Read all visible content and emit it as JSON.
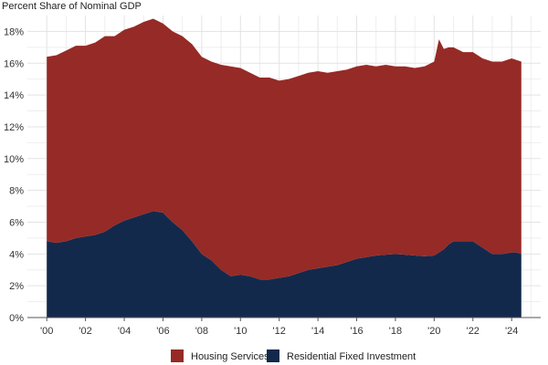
{
  "chart_data": {
    "type": "area",
    "stacked": true,
    "ylabel": "Percent Share of Nominal GDP",
    "ylim": [
      0,
      19
    ],
    "yticks": [
      0,
      2,
      4,
      6,
      8,
      10,
      12,
      14,
      16,
      18
    ],
    "ytick_labels": [
      "0%",
      "2%",
      "4%",
      "6%",
      "8%",
      "10%",
      "12%",
      "14%",
      "16%",
      "18%"
    ],
    "xlim": [
      1999.0,
      2025.5
    ],
    "xticks": [
      2000,
      2002,
      2004,
      2006,
      2008,
      2010,
      2012,
      2014,
      2016,
      2018,
      2020,
      2022,
      2024
    ],
    "xtick_labels": [
      "'00",
      "'02",
      "'04",
      "'06",
      "'08",
      "'10",
      "'12",
      "'14",
      "'16",
      "'18",
      "'20",
      "'22",
      "'24"
    ],
    "grid": true,
    "legend_position": "bottom",
    "x": [
      2000.0,
      2000.5,
      2001.0,
      2001.5,
      2002.0,
      2002.5,
      2003.0,
      2003.5,
      2004.0,
      2004.5,
      2005.0,
      2005.5,
      2006.0,
      2006.5,
      2007.0,
      2007.5,
      2008.0,
      2008.5,
      2009.0,
      2009.5,
      2010.0,
      2010.5,
      2011.0,
      2011.5,
      2012.0,
      2012.5,
      2013.0,
      2013.5,
      2014.0,
      2014.5,
      2015.0,
      2015.5,
      2016.0,
      2016.5,
      2017.0,
      2017.5,
      2018.0,
      2018.5,
      2019.0,
      2019.5,
      2020.0,
      2020.25,
      2020.5,
      2020.75,
      2021.0,
      2021.5,
      2022.0,
      2022.5,
      2023.0,
      2023.5,
      2024.0,
      2024.25,
      2024.5
    ],
    "series": [
      {
        "name": "Residential Fixed Investment",
        "color": "#13294b",
        "values": [
          4.8,
          4.7,
          4.8,
          5.0,
          5.1,
          5.2,
          5.4,
          5.8,
          6.1,
          6.3,
          6.5,
          6.7,
          6.6,
          6.0,
          5.5,
          4.8,
          4.0,
          3.6,
          3.0,
          2.6,
          2.7,
          2.6,
          2.4,
          2.4,
          2.5,
          2.6,
          2.8,
          3.0,
          3.1,
          3.2,
          3.3,
          3.5,
          3.7,
          3.8,
          3.9,
          3.95,
          4.0,
          3.95,
          3.9,
          3.85,
          3.9,
          4.1,
          4.3,
          4.6,
          4.8,
          4.8,
          4.8,
          4.4,
          4.0,
          4.0,
          4.1,
          4.1,
          4.0
        ]
      },
      {
        "name": "Housing Services",
        "color": "#962a26",
        "values": [
          11.6,
          11.8,
          12.0,
          12.1,
          12.0,
          12.1,
          12.3,
          11.9,
          12.0,
          12.0,
          12.1,
          12.1,
          11.9,
          12.0,
          12.2,
          12.4,
          12.4,
          12.5,
          12.9,
          13.2,
          13.0,
          12.8,
          12.7,
          12.7,
          12.4,
          12.4,
          12.4,
          12.4,
          12.4,
          12.2,
          12.2,
          12.1,
          12.1,
          12.1,
          11.9,
          11.95,
          11.8,
          11.85,
          11.8,
          11.95,
          12.2,
          13.4,
          12.6,
          12.4,
          12.2,
          11.9,
          11.9,
          11.9,
          12.1,
          12.1,
          12.2,
          12.1,
          12.1
        ]
      }
    ]
  }
}
